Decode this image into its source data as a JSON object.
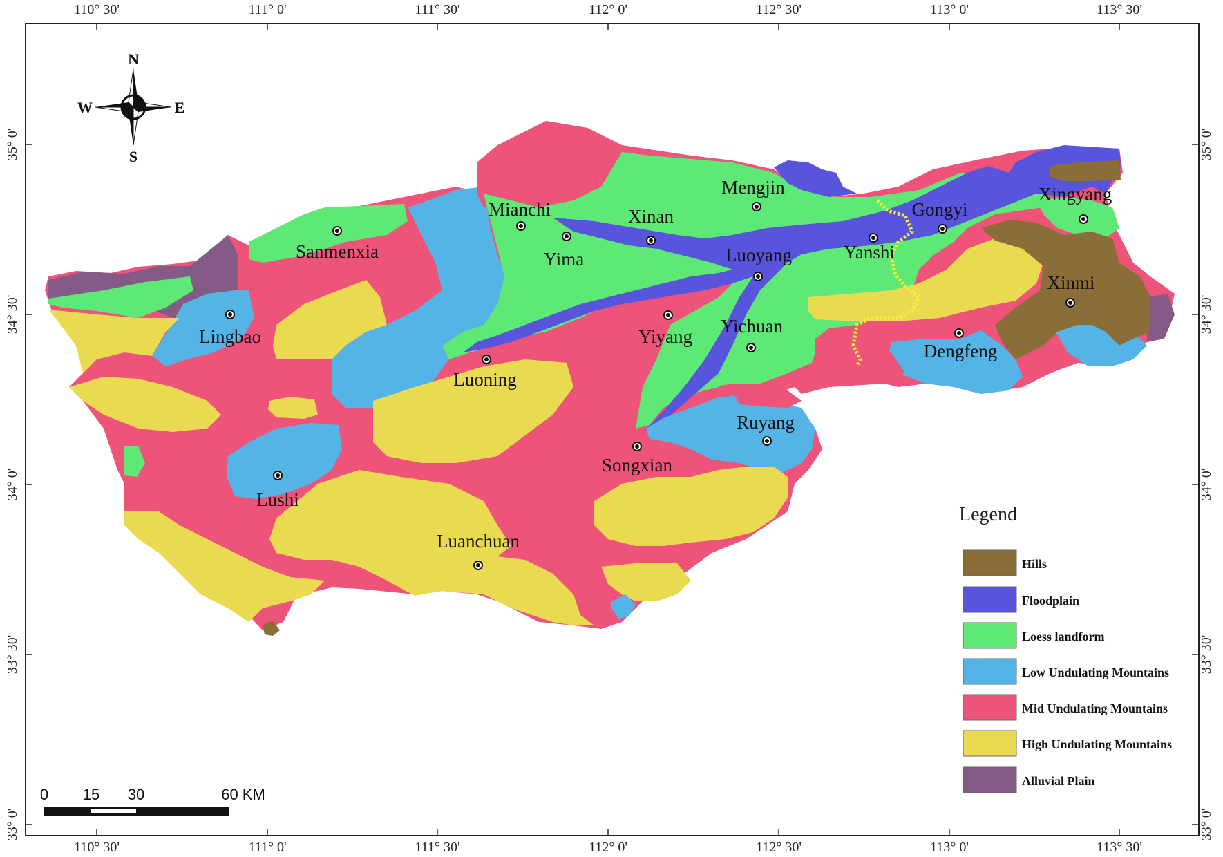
{
  "colors": {
    "hills": "#8b6d38",
    "floodplain": "#5954dc",
    "loess": "#5ee875",
    "low": "#54b4e5",
    "mid": "#ee5479",
    "high": "#eada52",
    "alluvial": "#845b86",
    "frame": "#222222"
  },
  "top_ticks": [
    "110° 30'",
    "111° 0'",
    "111° 30'",
    "112° 0'",
    "112° 30'",
    "113° 0'",
    "113° 30'"
  ],
  "bottom_ticks": [
    "110° 30'",
    "111° 0'",
    "111° 30'",
    "112° 0'",
    "112° 30'",
    "113° 0'",
    "113° 30'"
  ],
  "left_ticks": [
    "35° 0'",
    "34° 30'",
    "34° 0'",
    "33° 30'",
    "33° 0'"
  ],
  "right_ticks": [
    "35° 0'",
    "34° 30'",
    "34° 0'",
    "33° 30'",
    "33° 0'"
  ],
  "compass": {
    "n": "N",
    "s": "S",
    "e": "E",
    "w": "W"
  },
  "cities": [
    {
      "name": "Sanmenxia"
    },
    {
      "name": "Lingbao"
    },
    {
      "name": "Mianchi"
    },
    {
      "name": "Yima"
    },
    {
      "name": "Xinan"
    },
    {
      "name": "Mengjin"
    },
    {
      "name": "Luoyang"
    },
    {
      "name": "Yanshi"
    },
    {
      "name": "Gongyi"
    },
    {
      "name": "Xingyang"
    },
    {
      "name": "Xinmi"
    },
    {
      "name": "Dengfeng"
    },
    {
      "name": "Yichuan"
    },
    {
      "name": "Yiyang"
    },
    {
      "name": "Luoning"
    },
    {
      "name": "Ruyang"
    },
    {
      "name": "Songxian"
    },
    {
      "name": "Lushi"
    },
    {
      "name": "Luanchuan"
    }
  ],
  "legend": {
    "title": "Legend",
    "items": [
      {
        "label": "Hills",
        "color": "#8b6d38"
      },
      {
        "label": "Floodplain",
        "color": "#5954dc"
      },
      {
        "label": "Loess landform",
        "color": "#5ee875"
      },
      {
        "label": "Low Undulating Mountains",
        "color": "#54b4e5"
      },
      {
        "label": "Mid Undulating Mountains",
        "color": "#ee5479"
      },
      {
        "label": "High Undulating Mountains",
        "color": "#eada52"
      },
      {
        "label": "Alluvial Plain",
        "color": "#845b86"
      }
    ]
  },
  "scale_bar": {
    "labels": [
      "0",
      "15",
      "30",
      "60 KM"
    ]
  }
}
